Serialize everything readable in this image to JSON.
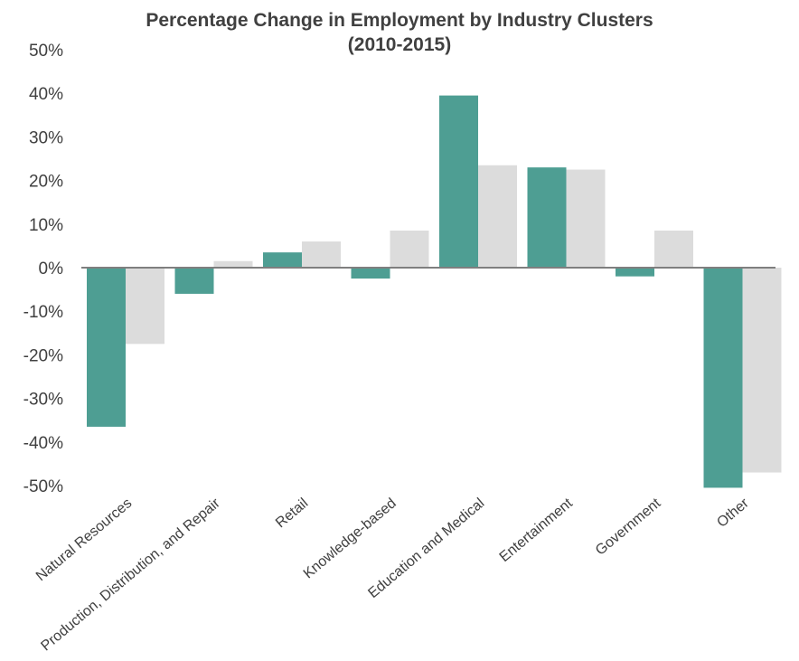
{
  "chart_data": {
    "type": "bar",
    "title": "Percentage Change in Employment by Industry Clusters",
    "subtitle": "(2010-2015)",
    "xlabel": "",
    "ylabel": "",
    "ylim": [
      -50,
      50
    ],
    "yticks": [
      "50%",
      "40%",
      "30%",
      "20%",
      "10%",
      "0%",
      "-10%",
      "-20%",
      "-30%",
      "-40%",
      "-50%"
    ],
    "grid": false,
    "legend": "none",
    "categories": [
      "Natural Resources",
      "Production, Distribution, and Repair",
      "Retail",
      "Knowledge-based",
      "Education and Medical",
      "Entertainment",
      "Government",
      "Other"
    ],
    "series": [
      {
        "values": [
          -36.5,
          -6,
          3.5,
          -2.5,
          39.5,
          23,
          -2,
          -50.5
        ],
        "color": "#4e9e93"
      },
      {
        "values": [
          -17.5,
          1.5,
          6,
          8.5,
          23.5,
          22.5,
          8.5,
          -47
        ],
        "color": "#dcdcdc"
      }
    ]
  }
}
